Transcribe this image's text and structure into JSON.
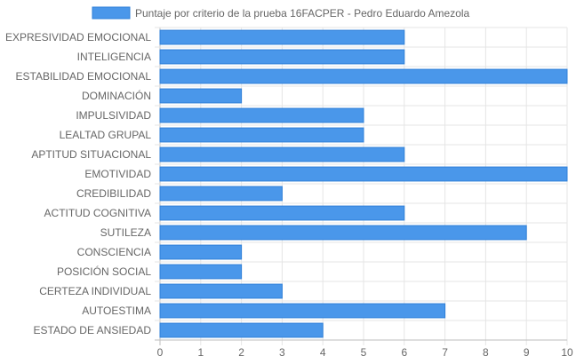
{
  "chart_data": {
    "type": "bar",
    "orientation": "horizontal",
    "categories": [
      "EXPRESIVIDAD EMOCIONAL",
      "INTELIGENCIA",
      "ESTABILIDAD EMOCIONAL",
      "DOMINACIÓN",
      "IMPULSIVIDAD",
      "LEALTAD GRUPAL",
      "APTITUD SITUACIONAL",
      "EMOTIVIDAD",
      "CREDIBILIDAD",
      "ACTITUD COGNITIVA",
      "SUTILEZA",
      "CONSCIENCIA",
      "POSICIÓN SOCIAL",
      "CERTEZA INDIVIDUAL",
      "AUTOESTIMA",
      "ESTADO DE ANSIEDAD"
    ],
    "series": [
      {
        "name": "Puntaje por criterio de la prueba 16FACPER - Pedro Eduardo Amezola",
        "values": [
          6,
          6,
          10,
          2,
          5,
          5,
          6,
          10,
          3,
          6,
          9,
          2,
          2,
          3,
          7,
          4
        ]
      }
    ],
    "xlim": [
      0,
      10
    ],
    "x_ticks": [
      0,
      1,
      2,
      3,
      4,
      5,
      6,
      7,
      8,
      9,
      10
    ],
    "grid": true,
    "legend": "top",
    "colors": {
      "bar_fill": "#4A97EA",
      "bar_stroke": "#2E7FD8",
      "grid": "#E5E5E5",
      "axis": "#BDBDBD",
      "text": "#666666"
    }
  }
}
